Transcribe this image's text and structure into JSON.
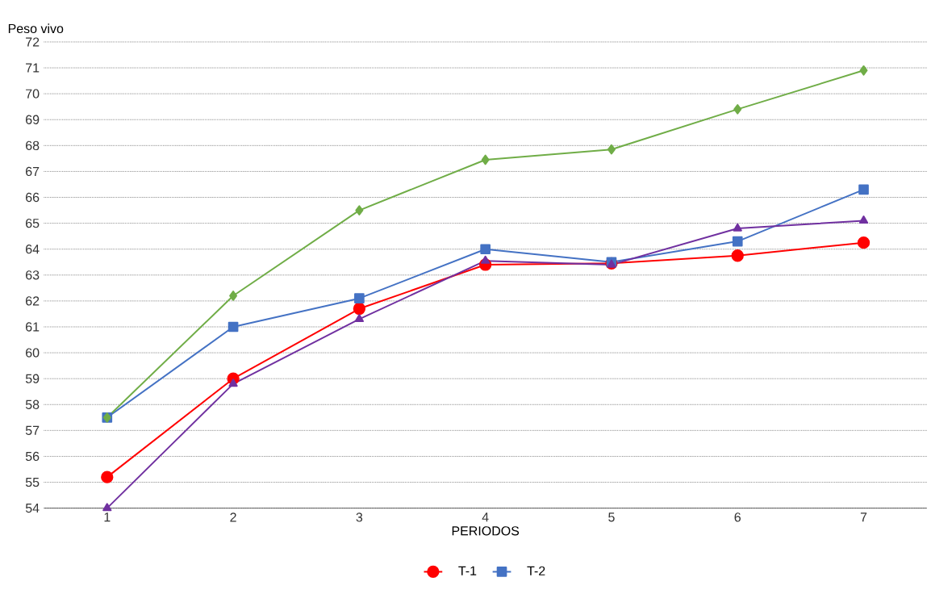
{
  "chart_data": {
    "type": "line",
    "xlabel": "PERIODOS",
    "ylabel": "Peso vivo",
    "categories": [
      "1",
      "2",
      "3",
      "4",
      "5",
      "6",
      "7"
    ],
    "ylim": [
      54,
      72
    ],
    "yticks": [
      54,
      55,
      56,
      57,
      58,
      59,
      60,
      61,
      62,
      63,
      64,
      65,
      66,
      67,
      68,
      69,
      70,
      71,
      72
    ],
    "grid": "y",
    "legend": "bottom",
    "line_style": "solid",
    "series": [
      {
        "name": "T-1",
        "color": "#ff0000",
        "marker": "circle",
        "values": [
          55.2,
          59.0,
          61.7,
          63.4,
          63.45,
          63.75,
          64.25
        ]
      },
      {
        "name": "T-2",
        "color": "#4472c4",
        "marker": "square",
        "values": [
          57.5,
          61.0,
          62.1,
          64.0,
          63.5,
          64.3,
          66.3
        ]
      },
      {
        "color": "#70ad47",
        "marker": "diamond",
        "values": [
          57.5,
          62.2,
          65.5,
          67.45,
          67.85,
          69.4,
          70.9
        ]
      },
      {
        "color": "#7030a0",
        "marker": "triangle",
        "values": [
          54.0,
          58.8,
          61.3,
          63.55,
          63.4,
          64.8,
          65.1
        ]
      }
    ]
  }
}
